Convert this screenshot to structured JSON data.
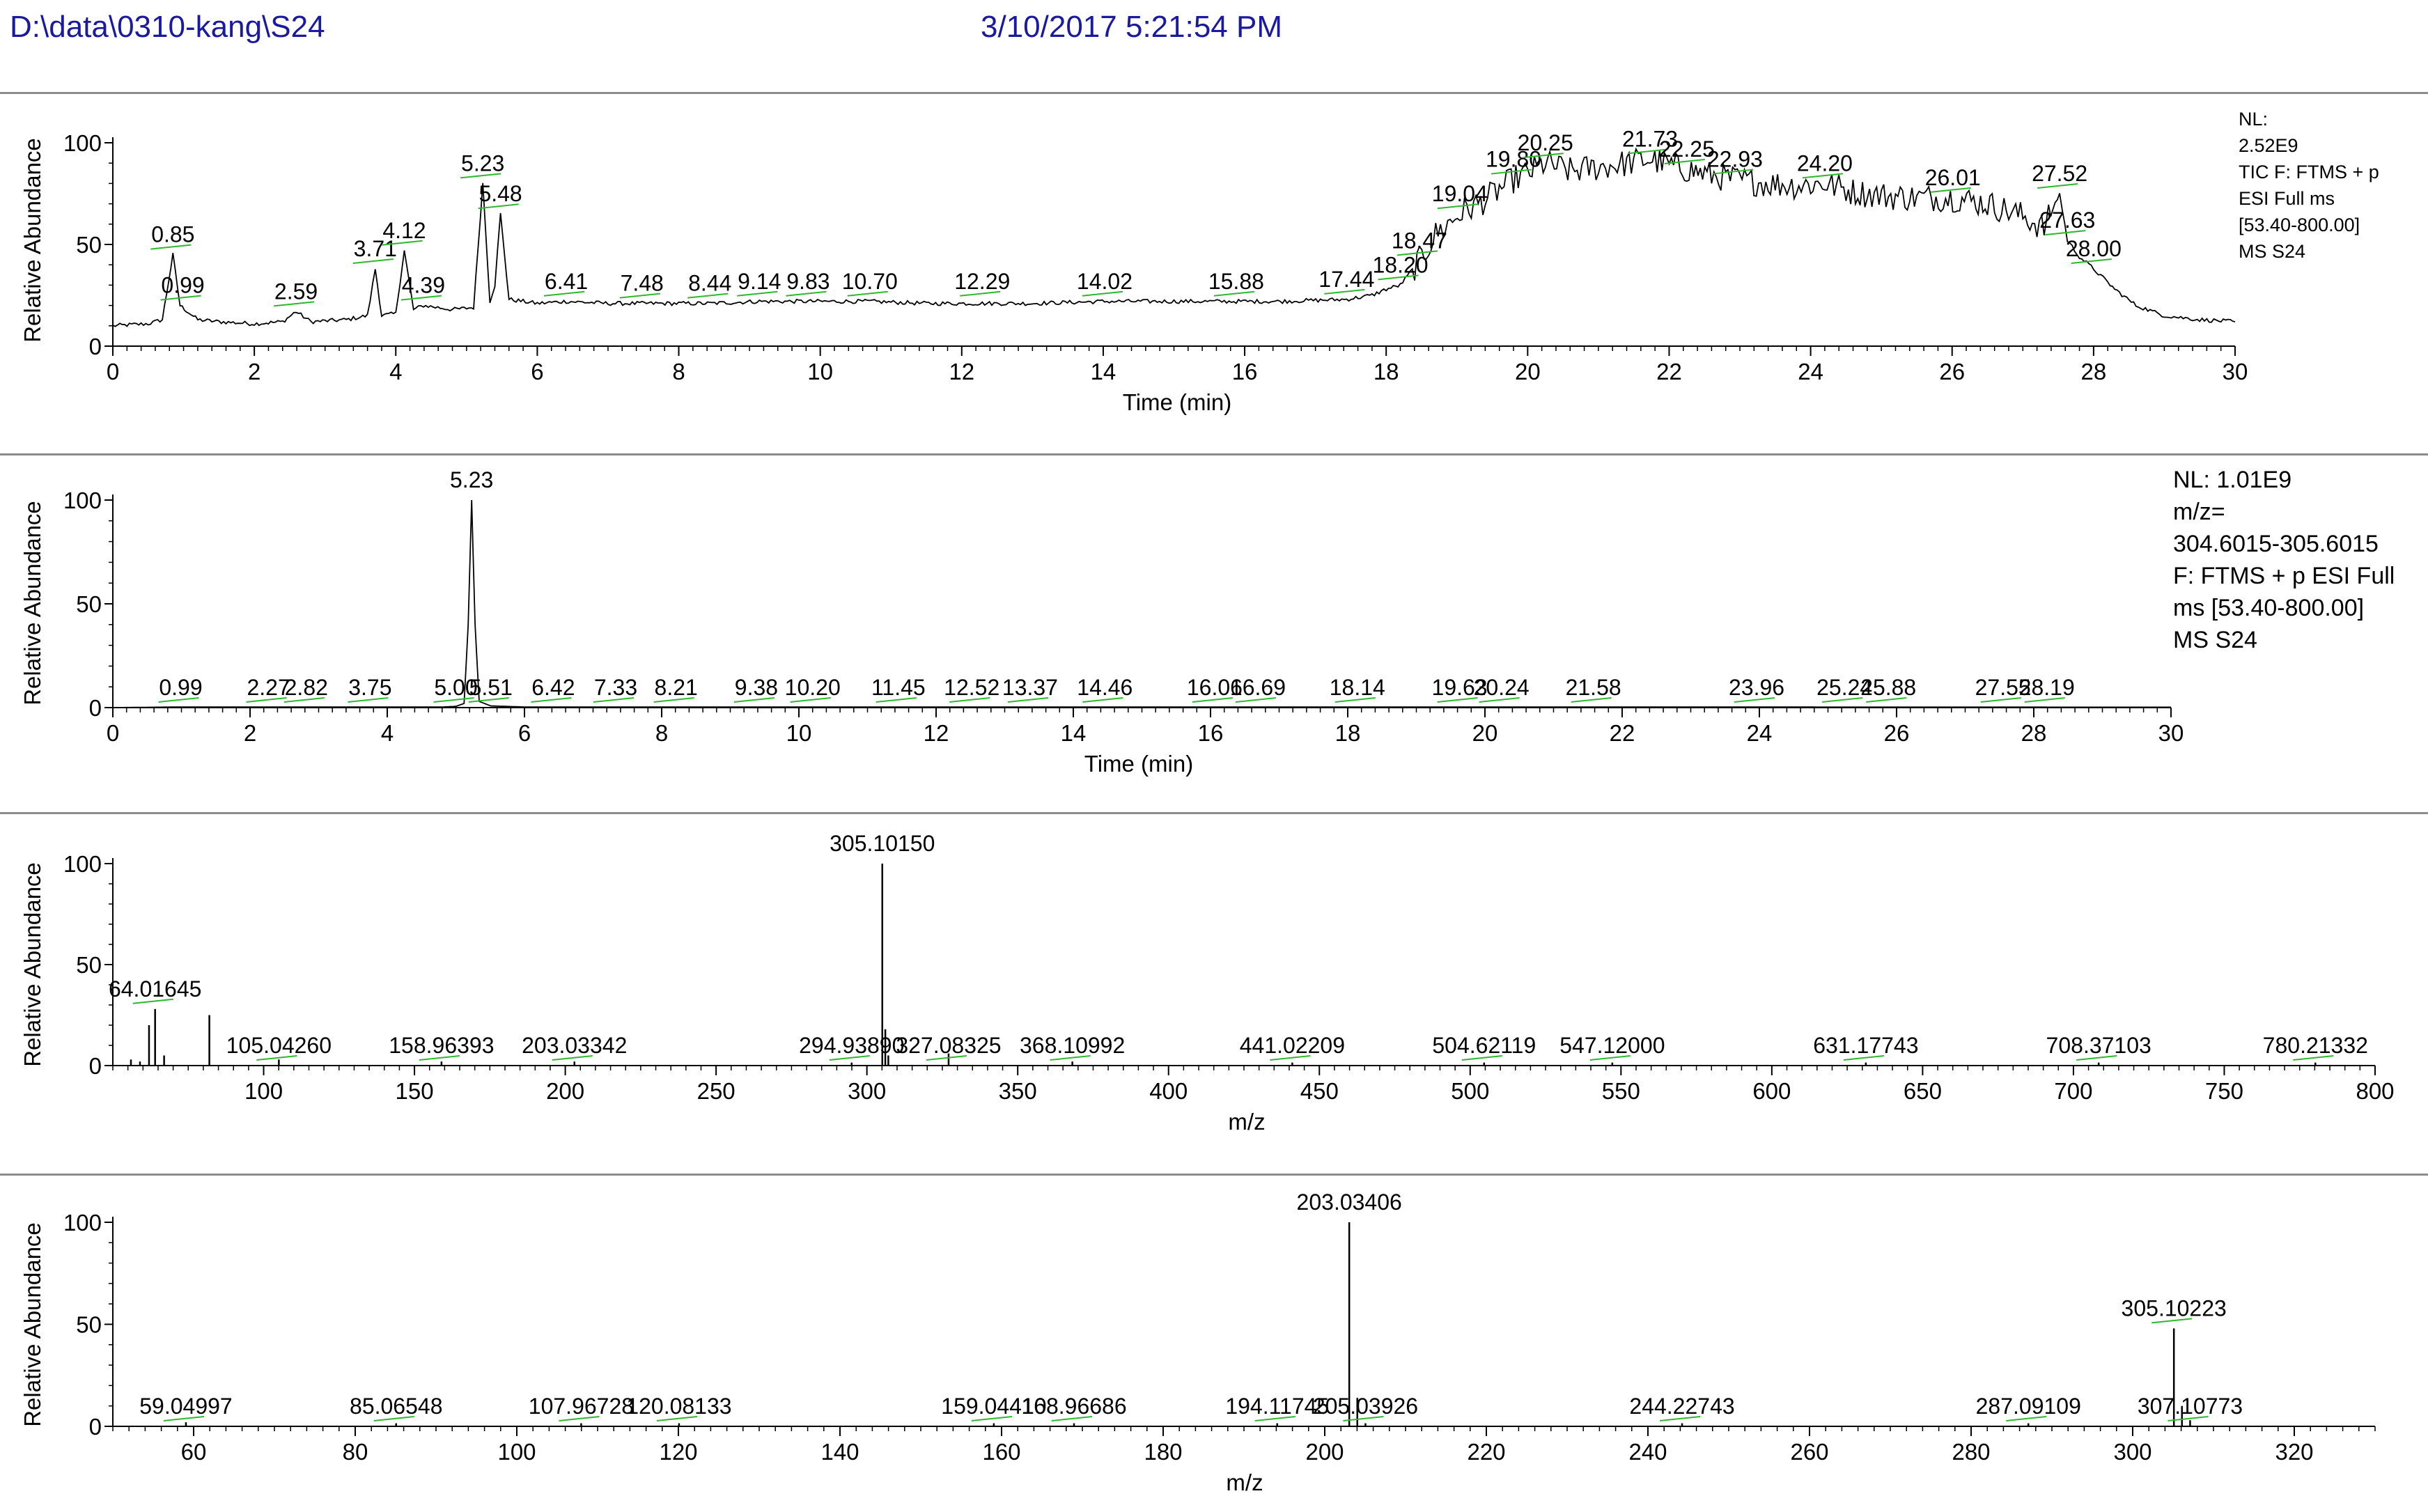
{
  "header": {
    "path": "D:\\data\\0310-kang\\S24",
    "datetime": "3/10/2017 5:21:54 PM"
  },
  "colors": {
    "header_text": "#1a1aa0",
    "label_connector": "#2db82d",
    "trace": "#000000"
  },
  "chart_data": [
    {
      "type": "line",
      "xlabel": "Time (min)",
      "ylabel": "Relative Abundance",
      "xlim": [
        0,
        30
      ],
      "ylim": [
        0,
        100
      ],
      "xticks": [
        0,
        2,
        4,
        6,
        8,
        10,
        12,
        14,
        16,
        18,
        20,
        22,
        24,
        26,
        28,
        30
      ],
      "yticks": [
        0,
        50,
        100
      ],
      "info": [
        "NL:",
        "2.52E9",
        "TIC F: FTMS + p",
        "ESI Full ms",
        "[53.40-800.00]",
        "MS S24"
      ],
      "trace": [
        [
          0,
          10
        ],
        [
          0.5,
          11
        ],
        [
          0.7,
          13
        ],
        [
          0.85,
          45
        ],
        [
          0.95,
          20
        ],
        [
          1.2,
          13
        ],
        [
          1.5,
          12
        ],
        [
          2.0,
          11
        ],
        [
          2.4,
          12
        ],
        [
          2.59,
          17
        ],
        [
          2.8,
          12
        ],
        [
          3.3,
          13
        ],
        [
          3.6,
          15
        ],
        [
          3.71,
          38
        ],
        [
          3.8,
          15
        ],
        [
          4.0,
          16
        ],
        [
          4.12,
          47
        ],
        [
          4.25,
          18
        ],
        [
          4.39,
          20
        ],
        [
          4.8,
          18
        ],
        [
          5.1,
          19
        ],
        [
          5.23,
          80
        ],
        [
          5.33,
          22
        ],
        [
          5.4,
          30
        ],
        [
          5.48,
          65
        ],
        [
          5.6,
          23
        ],
        [
          6.0,
          21
        ],
        [
          6.41,
          22
        ],
        [
          7.0,
          21
        ],
        [
          7.48,
          21
        ],
        [
          8.0,
          21
        ],
        [
          8.44,
          21
        ],
        [
          9.14,
          22
        ],
        [
          9.83,
          22
        ],
        [
          10.7,
          22
        ],
        [
          11.5,
          21
        ],
        [
          12.29,
          21
        ],
        [
          13.0,
          21
        ],
        [
          14.02,
          22
        ],
        [
          15.0,
          22
        ],
        [
          15.88,
          22
        ],
        [
          16.5,
          22
        ],
        [
          17.44,
          23
        ],
        [
          17.8,
          25
        ],
        [
          18.0,
          28
        ],
        [
          18.2,
          30
        ],
        [
          18.47,
          42
        ],
        [
          18.7,
          55
        ],
        [
          19.04,
          65
        ],
        [
          19.4,
          72
        ],
        [
          19.8,
          82
        ],
        [
          20.0,
          85
        ],
        [
          20.25,
          90
        ],
        [
          20.6,
          86
        ],
        [
          21.0,
          88
        ],
        [
          21.4,
          90
        ],
        [
          21.73,
          92
        ],
        [
          22.0,
          89
        ],
        [
          22.25,
          87
        ],
        [
          22.6,
          84
        ],
        [
          22.93,
          82
        ],
        [
          23.4,
          80
        ],
        [
          23.8,
          79
        ],
        [
          24.2,
          80
        ],
        [
          24.6,
          76
        ],
        [
          25.0,
          74
        ],
        [
          25.5,
          73
        ],
        [
          26.01,
          73
        ],
        [
          26.5,
          70
        ],
        [
          27.0,
          64
        ],
        [
          27.3,
          58
        ],
        [
          27.52,
          75
        ],
        [
          27.63,
          52
        ],
        [
          27.8,
          44
        ],
        [
          28.0,
          38
        ],
        [
          28.3,
          28
        ],
        [
          28.6,
          20
        ],
        [
          29.0,
          15
        ],
        [
          29.5,
          13
        ],
        [
          30,
          12
        ]
      ],
      "noise_from": 18.4,
      "noise_to": 27.4,
      "peaks": [
        {
          "label": "0.85",
          "x": 0.85,
          "y": 45
        },
        {
          "label": "0.99",
          "x": 0.99,
          "y": 20
        },
        {
          "label": "2.59",
          "x": 2.59,
          "y": 17
        },
        {
          "label": "3.71",
          "x": 3.71,
          "y": 38
        },
        {
          "label": "4.12",
          "x": 4.12,
          "y": 47
        },
        {
          "label": "4.39",
          "x": 4.39,
          "y": 20
        },
        {
          "label": "5.23",
          "x": 5.23,
          "y": 80
        },
        {
          "label": "5.48",
          "x": 5.48,
          "y": 65
        },
        {
          "label": "6.41",
          "x": 6.41,
          "y": 22
        },
        {
          "label": "7.48",
          "x": 7.48,
          "y": 21
        },
        {
          "label": "8.44",
          "x": 8.44,
          "y": 21
        },
        {
          "label": "9.14",
          "x": 9.14,
          "y": 22
        },
        {
          "label": "9.83",
          "x": 9.83,
          "y": 22
        },
        {
          "label": "10.70",
          "x": 10.7,
          "y": 22
        },
        {
          "label": "12.29",
          "x": 12.29,
          "y": 22
        },
        {
          "label": "14.02",
          "x": 14.02,
          "y": 22
        },
        {
          "label": "15.88",
          "x": 15.88,
          "y": 22
        },
        {
          "label": "17.44",
          "x": 17.44,
          "y": 23
        },
        {
          "label": "18.20",
          "x": 18.2,
          "y": 30
        },
        {
          "label": "18.47",
          "x": 18.47,
          "y": 42
        },
        {
          "label": "19.04",
          "x": 19.04,
          "y": 65
        },
        {
          "label": "19.80",
          "x": 19.8,
          "y": 82
        },
        {
          "label": "20.25",
          "x": 20.25,
          "y": 90
        },
        {
          "label": "21.73",
          "x": 21.73,
          "y": 92
        },
        {
          "label": "22.25",
          "x": 22.25,
          "y": 87
        },
        {
          "label": "22.93",
          "x": 22.93,
          "y": 82
        },
        {
          "label": "24.20",
          "x": 24.2,
          "y": 80
        },
        {
          "label": "26.01",
          "x": 26.01,
          "y": 73
        },
        {
          "label": "27.52",
          "x": 27.52,
          "y": 75
        },
        {
          "label": "27.63",
          "x": 27.63,
          "y": 52
        },
        {
          "label": "28.00",
          "x": 28.0,
          "y": 38
        }
      ]
    },
    {
      "type": "line",
      "xlabel": "Time (min)",
      "ylabel": "Relative Abundance",
      "xlim": [
        0,
        30
      ],
      "ylim": [
        0,
        100
      ],
      "xticks": [
        0,
        2,
        4,
        6,
        8,
        10,
        12,
        14,
        16,
        18,
        20,
        22,
        24,
        26,
        28,
        30
      ],
      "yticks": [
        0,
        50,
        100
      ],
      "info": [
        "NL: 1.01E9",
        "m/z=",
        "304.6015-305.6015",
        "F: FTMS + p ESI Full",
        "ms [53.40-800.00]",
        "MS S24"
      ],
      "trace": [
        [
          0,
          0
        ],
        [
          0.99,
          0.3
        ],
        [
          2.27,
          0.3
        ],
        [
          4.8,
          0.3
        ],
        [
          5.0,
          0.6
        ],
        [
          5.12,
          2
        ],
        [
          5.18,
          40
        ],
        [
          5.23,
          100
        ],
        [
          5.28,
          40
        ],
        [
          5.34,
          3
        ],
        [
          5.51,
          0.8
        ],
        [
          6.0,
          0.3
        ],
        [
          10,
          0.3
        ],
        [
          20,
          0.3
        ],
        [
          30,
          0.2
        ]
      ],
      "peaks": [
        {
          "label": "0.99",
          "x": 0.99,
          "y": 0.3
        },
        {
          "label": "2.27",
          "x": 2.27,
          "y": 0.3
        },
        {
          "label": "2.82",
          "x": 2.82,
          "y": 0.3
        },
        {
          "label": "3.75",
          "x": 3.75,
          "y": 0.3
        },
        {
          "label": "5.00",
          "x": 5.0,
          "y": 0.6
        },
        {
          "label": "5.23",
          "x": 5.23,
          "y": 100
        },
        {
          "label": "5.51",
          "x": 5.51,
          "y": 0.8
        },
        {
          "label": "6.42",
          "x": 6.42,
          "y": 0.3
        },
        {
          "label": "7.33",
          "x": 7.33,
          "y": 0.3
        },
        {
          "label": "8.21",
          "x": 8.21,
          "y": 0.3
        },
        {
          "label": "9.38",
          "x": 9.38,
          "y": 0.3
        },
        {
          "label": "10.20",
          "x": 10.2,
          "y": 0.3
        },
        {
          "label": "11.45",
          "x": 11.45,
          "y": 0.3
        },
        {
          "label": "12.52",
          "x": 12.52,
          "y": 0.3
        },
        {
          "label": "13.37",
          "x": 13.37,
          "y": 0.3
        },
        {
          "label": "14.46",
          "x": 14.46,
          "y": 0.3
        },
        {
          "label": "16.06",
          "x": 16.06,
          "y": 0.3
        },
        {
          "label": "16.69",
          "x": 16.69,
          "y": 0.3
        },
        {
          "label": "18.14",
          "x": 18.14,
          "y": 0.3
        },
        {
          "label": "19.63",
          "x": 19.63,
          "y": 0.3
        },
        {
          "label": "20.24",
          "x": 20.24,
          "y": 0.3
        },
        {
          "label": "21.58",
          "x": 21.58,
          "y": 0.3
        },
        {
          "label": "23.96",
          "x": 23.96,
          "y": 0.3
        },
        {
          "label": "25.24",
          "x": 25.24,
          "y": 0.3
        },
        {
          "label": "25.88",
          "x": 25.88,
          "y": 0.3
        },
        {
          "label": "27.55",
          "x": 27.55,
          "y": 0.3
        },
        {
          "label": "28.19",
          "x": 28.19,
          "y": 0.3
        }
      ]
    },
    {
      "type": "bar",
      "xlabel": "m/z",
      "ylabel": "Relative Abundance",
      "xlim": [
        50,
        800
      ],
      "ylim": [
        0,
        100
      ],
      "xticks": [
        100,
        150,
        200,
        250,
        300,
        350,
        400,
        450,
        500,
        550,
        600,
        650,
        700,
        750,
        800
      ],
      "yticks": [
        0,
        50,
        100
      ],
      "info": [],
      "sticks": [
        [
          56,
          3
        ],
        [
          59,
          2
        ],
        [
          62,
          20
        ],
        [
          64.01645,
          28
        ],
        [
          67,
          5
        ],
        [
          82,
          25
        ],
        [
          105.0426,
          3
        ],
        [
          158.96393,
          2
        ],
        [
          203.03342,
          2
        ],
        [
          294.9389,
          1.5
        ],
        [
          305.1015,
          100
        ],
        [
          306.1,
          18
        ],
        [
          307.1,
          5
        ],
        [
          327.08325,
          6
        ],
        [
          368.10992,
          2
        ],
        [
          441.02209,
          1.5
        ],
        [
          504.62119,
          1.5
        ],
        [
          547.12,
          1.5
        ],
        [
          631.17743,
          1.5
        ],
        [
          708.37103,
          1.5
        ],
        [
          780.21332,
          1.5
        ]
      ],
      "peaks": [
        {
          "label": "64.01645",
          "x": 64.01645,
          "y": 28
        },
        {
          "label": "105.04260",
          "x": 105.0426,
          "y": 3
        },
        {
          "label": "158.96393",
          "x": 158.96393,
          "y": 2
        },
        {
          "label": "203.03342",
          "x": 203.03342,
          "y": 2
        },
        {
          "label": "294.93890",
          "x": 294.9389,
          "y": 1.5
        },
        {
          "label": "305.10150",
          "x": 305.1015,
          "y": 100
        },
        {
          "label": "327.08325",
          "x": 327.08325,
          "y": 6
        },
        {
          "label": "368.10992",
          "x": 368.10992,
          "y": 2
        },
        {
          "label": "441.02209",
          "x": 441.02209,
          "y": 1.5
        },
        {
          "label": "504.62119",
          "x": 504.62119,
          "y": 1.5
        },
        {
          "label": "547.12000",
          "x": 547.12,
          "y": 1.5
        },
        {
          "label": "631.17743",
          "x": 631.17743,
          "y": 1.5
        },
        {
          "label": "708.37103",
          "x": 708.37103,
          "y": 1.5
        },
        {
          "label": "780.21332",
          "x": 780.21332,
          "y": 1.5
        }
      ]
    },
    {
      "type": "bar",
      "xlabel": "m/z",
      "ylabel": "Relative Abundance",
      "xlim": [
        50,
        330
      ],
      "ylim": [
        0,
        100
      ],
      "xticks": [
        60,
        80,
        100,
        120,
        140,
        160,
        180,
        200,
        220,
        240,
        260,
        280,
        300,
        320
      ],
      "yticks": [
        0,
        50,
        100
      ],
      "info": [],
      "sticks": [
        [
          59.04997,
          2
        ],
        [
          85.06548,
          1.5
        ],
        [
          107.96728,
          1.5
        ],
        [
          120.08133,
          1.5
        ],
        [
          159.0441,
          1.5
        ],
        [
          168.96686,
          1.5
        ],
        [
          194.11745,
          1.5
        ],
        [
          203.03406,
          100
        ],
        [
          204.03,
          14
        ],
        [
          205.03926,
          1.5
        ],
        [
          244.22743,
          1.5
        ],
        [
          287.09109,
          1.5
        ],
        [
          305.10223,
          48
        ],
        [
          306.1,
          10
        ],
        [
          307.10773,
          3
        ]
      ],
      "peaks": [
        {
          "label": "59.04997",
          "x": 59.04997,
          "y": 2
        },
        {
          "label": "85.06548",
          "x": 85.06548,
          "y": 1.5
        },
        {
          "label": "107.96728",
          "x": 107.96728,
          "y": 1.5
        },
        {
          "label": "120.08133",
          "x": 120.08133,
          "y": 1.5
        },
        {
          "label": "159.04410",
          "x": 159.0441,
          "y": 1.5
        },
        {
          "label": "168.96686",
          "x": 168.96686,
          "y": 1.5
        },
        {
          "label": "194.11745",
          "x": 194.11745,
          "y": 1.5
        },
        {
          "label": "203.03406",
          "x": 203.03406,
          "y": 100
        },
        {
          "label": "205.03926",
          "x": 205.03926,
          "y": 1.5
        },
        {
          "label": "244.22743",
          "x": 244.22743,
          "y": 1.5
        },
        {
          "label": "287.09109",
          "x": 287.09109,
          "y": 1.5
        },
        {
          "label": "305.10223",
          "x": 305.10223,
          "y": 48
        },
        {
          "label": "307.10773",
          "x": 307.10773,
          "y": 3
        }
      ]
    }
  ]
}
